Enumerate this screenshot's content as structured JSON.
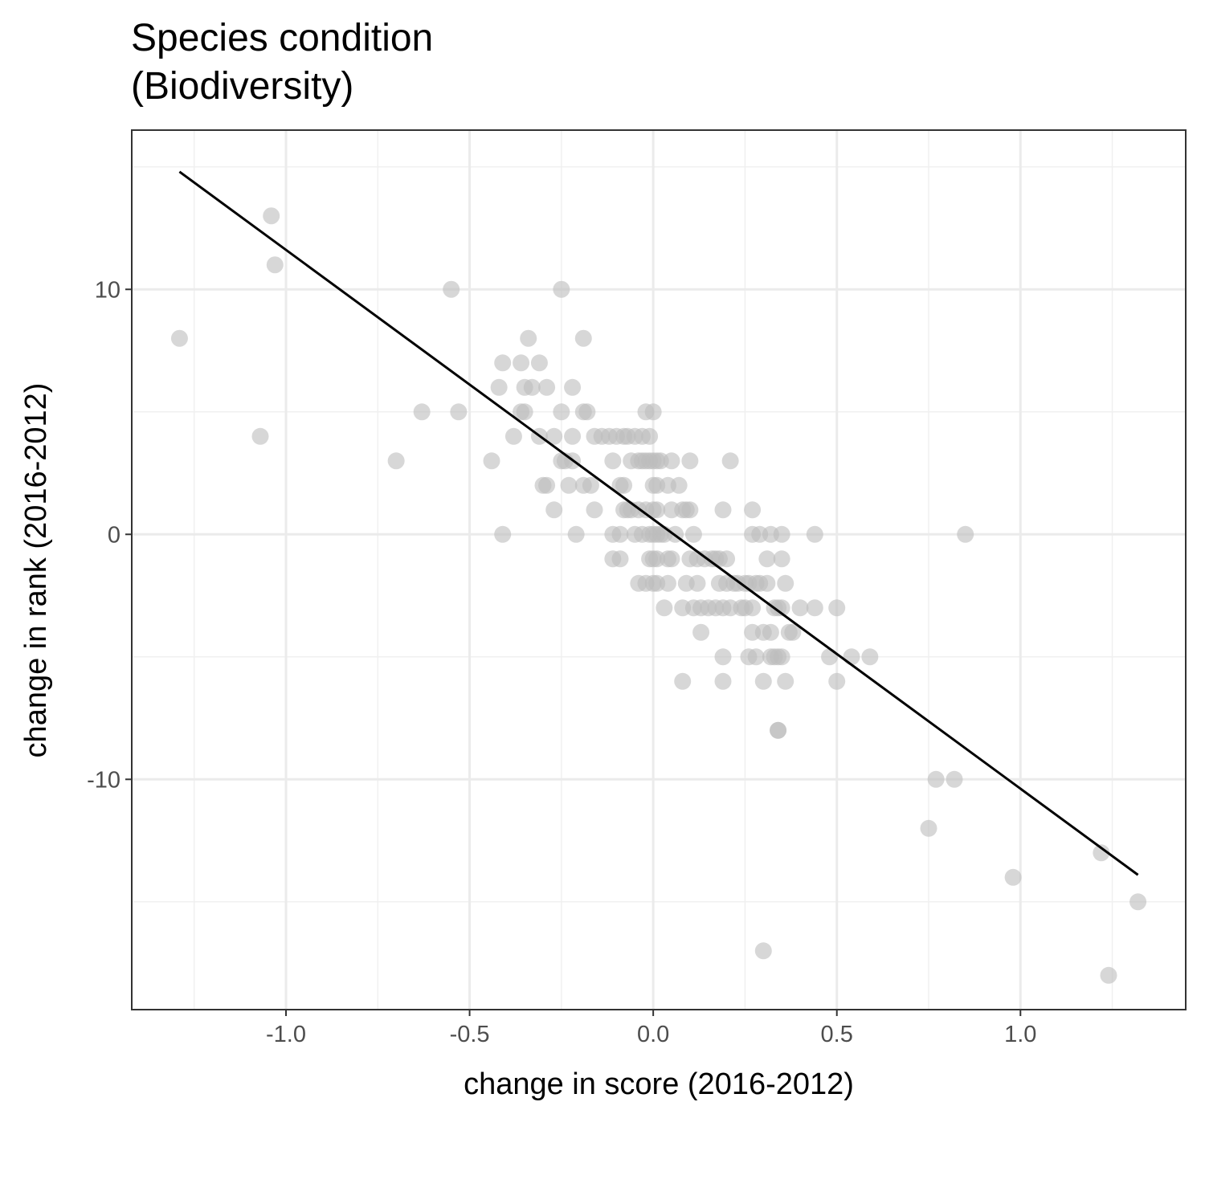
{
  "chart_data": {
    "type": "scatter",
    "title": [
      "Species condition",
      "(Biodiversity)"
    ],
    "xlabel": "change in score (2016-2012)",
    "ylabel": "change in rank (2016-2012)",
    "xlim": [
      -1.42,
      1.45
    ],
    "ylim": [
      -19.4,
      16.5
    ],
    "x_ticks": [
      -1.0,
      -0.5,
      0.0,
      0.5,
      1.0
    ],
    "x_tick_labels": [
      "-1.0",
      "-0.5",
      "0.0",
      "0.5",
      "1.0"
    ],
    "y_ticks": [
      -10,
      0,
      10
    ],
    "y_tick_labels": [
      "-10",
      "0",
      "10"
    ],
    "grid": true,
    "point_color": "#bdbdbd",
    "line_color": "#000000",
    "trend_line": {
      "x": [
        -1.29,
        1.32
      ],
      "y": [
        14.8,
        -13.9
      ]
    },
    "points": [
      {
        "x": -1.29,
        "y": 8
      },
      {
        "x": -1.04,
        "y": 13
      },
      {
        "x": -1.03,
        "y": 11
      },
      {
        "x": -1.07,
        "y": 4
      },
      {
        "x": -0.7,
        "y": 3
      },
      {
        "x": -0.63,
        "y": 5
      },
      {
        "x": -0.55,
        "y": 10
      },
      {
        "x": -0.53,
        "y": 5
      },
      {
        "x": -0.44,
        "y": 3
      },
      {
        "x": -0.42,
        "y": 6
      },
      {
        "x": -0.41,
        "y": 7
      },
      {
        "x": -0.41,
        "y": 0
      },
      {
        "x": -0.38,
        "y": 4
      },
      {
        "x": -0.36,
        "y": 7
      },
      {
        "x": -0.36,
        "y": 5
      },
      {
        "x": -0.35,
        "y": 6
      },
      {
        "x": -0.35,
        "y": 5
      },
      {
        "x": -0.34,
        "y": 8
      },
      {
        "x": -0.33,
        "y": 6
      },
      {
        "x": -0.31,
        "y": 7
      },
      {
        "x": -0.31,
        "y": 4
      },
      {
        "x": -0.3,
        "y": 2
      },
      {
        "x": -0.29,
        "y": 6
      },
      {
        "x": -0.29,
        "y": 2
      },
      {
        "x": -0.27,
        "y": 4
      },
      {
        "x": -0.27,
        "y": 1
      },
      {
        "x": -0.25,
        "y": 10
      },
      {
        "x": -0.25,
        "y": 5
      },
      {
        "x": -0.25,
        "y": 3
      },
      {
        "x": -0.24,
        "y": 3
      },
      {
        "x": -0.23,
        "y": 2
      },
      {
        "x": -0.22,
        "y": 6
      },
      {
        "x": -0.22,
        "y": 4
      },
      {
        "x": -0.22,
        "y": 3
      },
      {
        "x": -0.21,
        "y": 0
      },
      {
        "x": -0.19,
        "y": 8
      },
      {
        "x": -0.19,
        "y": 5
      },
      {
        "x": -0.19,
        "y": 2
      },
      {
        "x": -0.18,
        "y": 5
      },
      {
        "x": -0.17,
        "y": 2
      },
      {
        "x": -0.16,
        "y": 4
      },
      {
        "x": -0.16,
        "y": 1
      },
      {
        "x": -0.14,
        "y": 4
      },
      {
        "x": -0.12,
        "y": 4
      },
      {
        "x": -0.11,
        "y": 3
      },
      {
        "x": -0.11,
        "y": 0
      },
      {
        "x": -0.11,
        "y": -1
      },
      {
        "x": -0.1,
        "y": 4
      },
      {
        "x": -0.09,
        "y": 2
      },
      {
        "x": -0.09,
        "y": 0
      },
      {
        "x": -0.09,
        "y": -1
      },
      {
        "x": -0.08,
        "y": 4
      },
      {
        "x": -0.08,
        "y": 2
      },
      {
        "x": -0.08,
        "y": 1
      },
      {
        "x": -0.07,
        "y": 4
      },
      {
        "x": -0.07,
        "y": 1
      },
      {
        "x": -0.06,
        "y": 3
      },
      {
        "x": -0.06,
        "y": 1
      },
      {
        "x": -0.05,
        "y": 4
      },
      {
        "x": -0.05,
        "y": 0
      },
      {
        "x": -0.04,
        "y": 3
      },
      {
        "x": -0.04,
        "y": 1
      },
      {
        "x": -0.04,
        "y": -2
      },
      {
        "x": -0.03,
        "y": 4
      },
      {
        "x": -0.03,
        "y": 3
      },
      {
        "x": -0.03,
        "y": 0
      },
      {
        "x": -0.02,
        "y": 5
      },
      {
        "x": -0.02,
        "y": 3
      },
      {
        "x": -0.02,
        "y": 1
      },
      {
        "x": -0.02,
        "y": -2
      },
      {
        "x": -0.01,
        "y": 4
      },
      {
        "x": -0.01,
        "y": 3
      },
      {
        "x": -0.01,
        "y": 0
      },
      {
        "x": -0.01,
        "y": -1
      },
      {
        "x": 0.0,
        "y": 5
      },
      {
        "x": 0.0,
        "y": 3
      },
      {
        "x": 0.0,
        "y": 2
      },
      {
        "x": 0.0,
        "y": 1
      },
      {
        "x": 0.0,
        "y": 0
      },
      {
        "x": 0.0,
        "y": -1
      },
      {
        "x": 0.0,
        "y": -2
      },
      {
        "x": 0.01,
        "y": 3
      },
      {
        "x": 0.01,
        "y": 2
      },
      {
        "x": 0.01,
        "y": 1
      },
      {
        "x": 0.01,
        "y": 0
      },
      {
        "x": 0.01,
        "y": -1
      },
      {
        "x": 0.01,
        "y": -2
      },
      {
        "x": 0.02,
        "y": 3
      },
      {
        "x": 0.02,
        "y": 0
      },
      {
        "x": 0.03,
        "y": 0
      },
      {
        "x": 0.03,
        "y": -3
      },
      {
        "x": 0.04,
        "y": 2
      },
      {
        "x": 0.04,
        "y": -1
      },
      {
        "x": 0.04,
        "y": -2
      },
      {
        "x": 0.05,
        "y": 3
      },
      {
        "x": 0.05,
        "y": 1
      },
      {
        "x": 0.05,
        "y": -1
      },
      {
        "x": 0.06,
        "y": 0
      },
      {
        "x": 0.07,
        "y": 2
      },
      {
        "x": 0.08,
        "y": 1
      },
      {
        "x": 0.08,
        "y": -3
      },
      {
        "x": 0.08,
        "y": -6
      },
      {
        "x": 0.09,
        "y": 1
      },
      {
        "x": 0.09,
        "y": -2
      },
      {
        "x": 0.1,
        "y": 3
      },
      {
        "x": 0.1,
        "y": 1
      },
      {
        "x": 0.1,
        "y": -1
      },
      {
        "x": 0.11,
        "y": -3
      },
      {
        "x": 0.11,
        "y": 0
      },
      {
        "x": 0.12,
        "y": -1
      },
      {
        "x": 0.12,
        "y": -2
      },
      {
        "x": 0.13,
        "y": -3
      },
      {
        "x": 0.13,
        "y": -4
      },
      {
        "x": 0.14,
        "y": -1
      },
      {
        "x": 0.15,
        "y": -3
      },
      {
        "x": 0.16,
        "y": -1
      },
      {
        "x": 0.17,
        "y": -3
      },
      {
        "x": 0.17,
        "y": -1
      },
      {
        "x": 0.18,
        "y": -2
      },
      {
        "x": 0.18,
        "y": -1
      },
      {
        "x": 0.19,
        "y": -3
      },
      {
        "x": 0.19,
        "y": -5
      },
      {
        "x": 0.19,
        "y": -6
      },
      {
        "x": 0.19,
        "y": 1
      },
      {
        "x": 0.2,
        "y": -2
      },
      {
        "x": 0.2,
        "y": -1
      },
      {
        "x": 0.21,
        "y": 3
      },
      {
        "x": 0.21,
        "y": -3
      },
      {
        "x": 0.22,
        "y": -2
      },
      {
        "x": 0.23,
        "y": -2
      },
      {
        "x": 0.24,
        "y": -3
      },
      {
        "x": 0.25,
        "y": -2
      },
      {
        "x": 0.25,
        "y": -3
      },
      {
        "x": 0.26,
        "y": -2
      },
      {
        "x": 0.26,
        "y": -5
      },
      {
        "x": 0.27,
        "y": -3
      },
      {
        "x": 0.27,
        "y": -4
      },
      {
        "x": 0.27,
        "y": 1
      },
      {
        "x": 0.27,
        "y": 0
      },
      {
        "x": 0.28,
        "y": -5
      },
      {
        "x": 0.28,
        "y": -2
      },
      {
        "x": 0.29,
        "y": 0
      },
      {
        "x": 0.29,
        "y": -2
      },
      {
        "x": 0.3,
        "y": -4
      },
      {
        "x": 0.3,
        "y": -6
      },
      {
        "x": 0.3,
        "y": -17
      },
      {
        "x": 0.31,
        "y": -1
      },
      {
        "x": 0.31,
        "y": -2
      },
      {
        "x": 0.32,
        "y": -4
      },
      {
        "x": 0.32,
        "y": -5
      },
      {
        "x": 0.32,
        "y": 0
      },
      {
        "x": 0.33,
        "y": -3
      },
      {
        "x": 0.33,
        "y": -5
      },
      {
        "x": 0.34,
        "y": -3
      },
      {
        "x": 0.34,
        "y": -5
      },
      {
        "x": 0.34,
        "y": -8
      },
      {
        "x": 0.34,
        "y": -8
      },
      {
        "x": 0.35,
        "y": -1
      },
      {
        "x": 0.35,
        "y": -3
      },
      {
        "x": 0.35,
        "y": -5
      },
      {
        "x": 0.35,
        "y": 0
      },
      {
        "x": 0.36,
        "y": -2
      },
      {
        "x": 0.36,
        "y": -6
      },
      {
        "x": 0.37,
        "y": -4
      },
      {
        "x": 0.38,
        "y": -4
      },
      {
        "x": 0.4,
        "y": -3
      },
      {
        "x": 0.44,
        "y": 0
      },
      {
        "x": 0.44,
        "y": -3
      },
      {
        "x": 0.48,
        "y": -5
      },
      {
        "x": 0.5,
        "y": -3
      },
      {
        "x": 0.5,
        "y": -6
      },
      {
        "x": 0.54,
        "y": -5
      },
      {
        "x": 0.59,
        "y": -5
      },
      {
        "x": 0.75,
        "y": -12
      },
      {
        "x": 0.77,
        "y": -10
      },
      {
        "x": 0.82,
        "y": -10
      },
      {
        "x": 0.85,
        "y": 0
      },
      {
        "x": 0.98,
        "y": -14
      },
      {
        "x": 1.22,
        "y": -13
      },
      {
        "x": 1.24,
        "y": -18
      },
      {
        "x": 1.32,
        "y": -15
      }
    ]
  }
}
